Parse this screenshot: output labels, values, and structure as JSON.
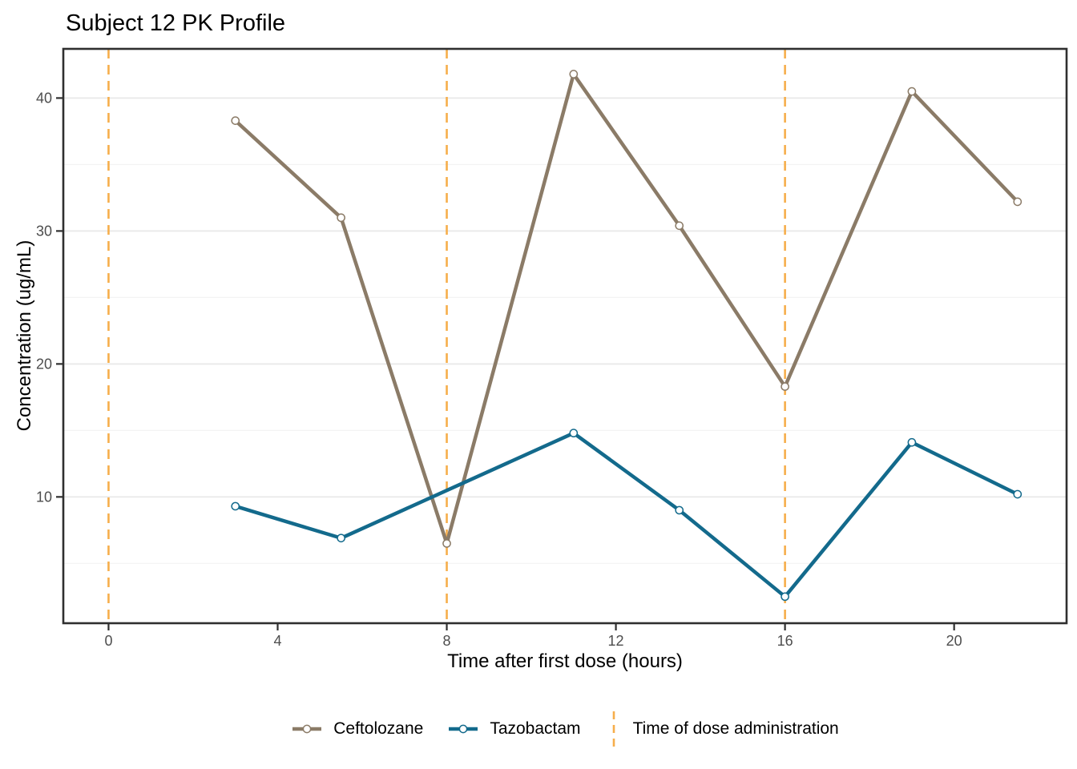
{
  "chart_data": {
    "type": "line",
    "title": "Subject 12 PK Profile",
    "xlabel": "Time after first dose (hours)",
    "ylabel": "Concentration (ug/mL)",
    "xlim": [
      -1.07,
      22.66
    ],
    "ylim": [
      0.5,
      43.7
    ],
    "x_ticks": [
      0,
      4,
      8,
      12,
      16,
      20
    ],
    "y_ticks": [
      10,
      20,
      30,
      40
    ],
    "y_minor_gridlines": [
      5,
      15,
      25,
      35
    ],
    "grid": "horizontal-only",
    "legend_position": "bottom",
    "panel_border_color": "#2f2f2f",
    "grid_major_color": "#e8e8e8",
    "grid_minor_color": "#f3f3f3",
    "tick_label_color": "#4d4d4d",
    "series": [
      {
        "name": "Ceftolozane",
        "color": "#8b7b67",
        "marker": "open-circle",
        "x": [
          3,
          5.5,
          8,
          11,
          13.5,
          16,
          19,
          21.5
        ],
        "y": [
          38.3,
          31.0,
          6.5,
          41.8,
          30.4,
          18.3,
          40.5,
          32.2
        ]
      },
      {
        "name": "Tazobactam",
        "color": "#136a8c",
        "marker": "open-circle",
        "x": [
          3,
          5.5,
          11,
          13.5,
          16,
          19,
          21.5
        ],
        "y": [
          9.3,
          6.9,
          14.8,
          9.0,
          2.5,
          14.1,
          10.2
        ]
      }
    ],
    "vlines": {
      "name": "Time of dose administration",
      "color": "#f6ae4b",
      "style": "dashed",
      "x": [
        0,
        8,
        16
      ]
    }
  }
}
